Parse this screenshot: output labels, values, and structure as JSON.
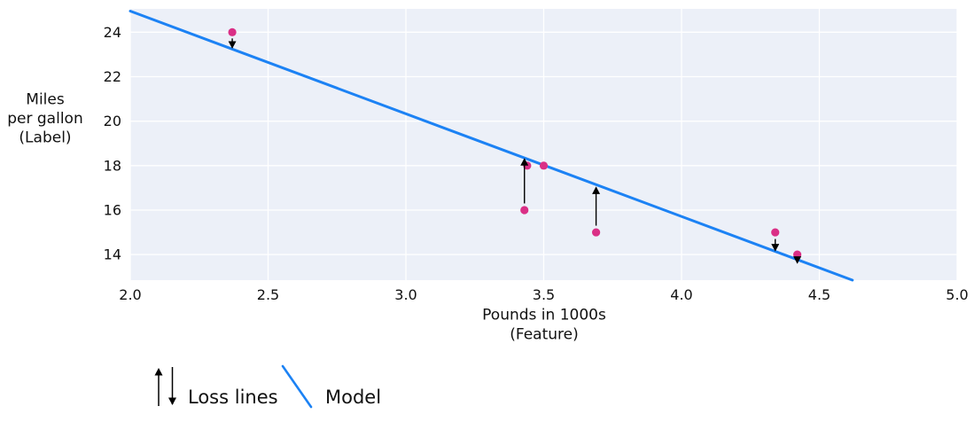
{
  "chart_data": {
    "type": "scatter",
    "title": "",
    "xlabel": "Pounds in 1000s (Feature)",
    "ylabel": "Miles per gallon (Label)",
    "xlabel_lines": [
      "Pounds in 1000s",
      "(Feature)"
    ],
    "ylabel_lines": [
      "Miles",
      "per gallon",
      "(Label)"
    ],
    "xlim": [
      2.0,
      5.0
    ],
    "ylim": [
      12.85,
      25.05
    ],
    "x_ticks": [
      2.0,
      2.5,
      3.0,
      3.5,
      4.0,
      4.5,
      5.0
    ],
    "y_ticks": [
      14,
      16,
      18,
      20,
      22,
      24
    ],
    "grid": true,
    "legend_position": "bottom-left",
    "points": [
      {
        "x": 2.37,
        "y": 24
      },
      {
        "x": 3.43,
        "y": 16
      },
      {
        "x": 3.44,
        "y": 18
      },
      {
        "x": 3.5,
        "y": 18
      },
      {
        "x": 3.69,
        "y": 15
      },
      {
        "x": 4.34,
        "y": 15
      },
      {
        "x": 4.42,
        "y": 14
      }
    ],
    "model_line": {
      "x1": 2.0,
      "y1": 24.95,
      "x2": 4.62,
      "y2": 12.85
    },
    "loss_arrows": [
      {
        "x": 2.37,
        "tail": 23.72,
        "tip": 23.3,
        "direction": "down"
      },
      {
        "x": 3.43,
        "tail": 16.3,
        "tip": 18.3,
        "direction": "up"
      },
      {
        "x": 3.69,
        "tail": 15.3,
        "tip": 17.02,
        "direction": "up"
      },
      {
        "x": 4.34,
        "tail": 14.7,
        "tip": 14.18,
        "direction": "down"
      },
      {
        "x": 4.42,
        "tail": 13.87,
        "tip": 13.62,
        "direction": "down"
      }
    ],
    "colors": {
      "point": "#da2f86",
      "model_line": "#1c82f4",
      "plot_background": "#ecf0f8",
      "gridline": "#ffffff",
      "arrow": "#000000",
      "text": "#111111"
    }
  },
  "legend": {
    "loss_label": "Loss lines",
    "model_label": "Model"
  }
}
